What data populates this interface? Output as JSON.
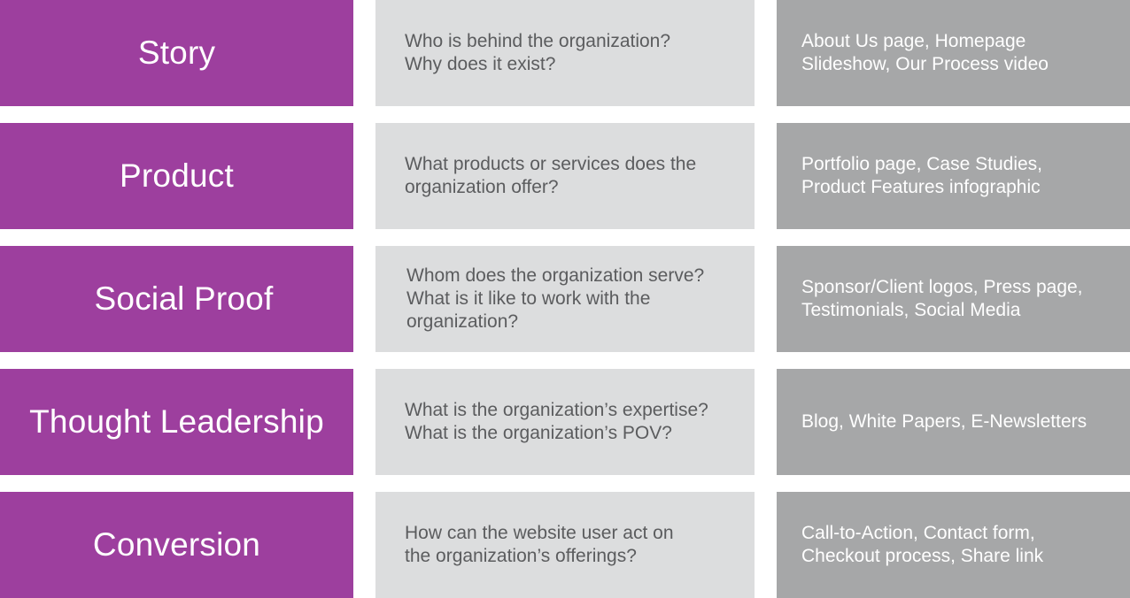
{
  "rows": [
    {
      "category": "Story",
      "question": "Who is behind the organization?\nWhy does it exist?",
      "examples": "About Us page, Homepage\nSlideshow, Our Process video"
    },
    {
      "category": "Product",
      "question": "What products or services does the\norganization offer?",
      "examples": "Portfolio page, Case Studies,\nProduct Features infographic"
    },
    {
      "category": "Social Proof",
      "question": "Whom does the organization serve?\nWhat is it like to work with the\norganization?",
      "examples": "Sponsor/Client logos, Press page,\nTestimonials, Social Media"
    },
    {
      "category": "Thought Leadership",
      "question": "What is the organization’s expertise?\nWhat is the organization’s POV?",
      "examples": "Blog, White Papers, E-Newsletters"
    },
    {
      "category": "Conversion",
      "question": "How can the website user act on\nthe organization’s offerings?",
      "examples": "Call-to-Action, Contact form,\nCheckout process, Share link"
    }
  ],
  "colors": {
    "category_bg": "#9d3f9e",
    "question_bg": "#dcddde",
    "example_bg": "#a6a7a8",
    "question_text": "#5b5c5e",
    "light_text": "#ffffff"
  }
}
